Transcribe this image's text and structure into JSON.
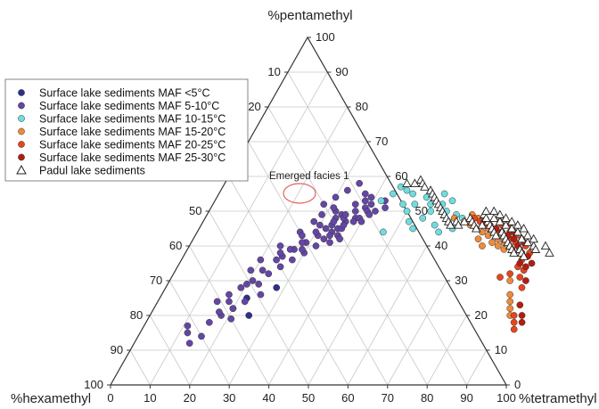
{
  "chart_data": {
    "type": "scatter",
    "subtype": "ternary",
    "axes": {
      "top": "%pentamethyl",
      "left": "%hexamethyl",
      "right": "%tetramethyl"
    },
    "bottom_ticks": [
      "0",
      "10",
      "20",
      "30",
      "40",
      "50",
      "60",
      "70",
      "80",
      "90",
      "100"
    ],
    "left_ticks": [
      "10",
      "20",
      "30",
      "40",
      "50",
      "60",
      "70",
      "80",
      "90",
      "100"
    ],
    "right_ticks": [
      "0",
      "10",
      "20",
      "30",
      "40",
      "50",
      "60",
      "70",
      "80",
      "90",
      "100"
    ],
    "grid": true,
    "legend_position": "top-left",
    "annotation": {
      "text": "Emerged facies 1",
      "marker": "ellipse",
      "marker_color": "#e06060"
    },
    "series": [
      {
        "name": "Surface lake sediments MAF <5°C",
        "marker": "circle",
        "color": "#2e2f8f",
        "points": [
          [
            20,
            22
          ],
          [
            22,
            25
          ],
          [
            25,
            20
          ],
          [
            28,
            28
          ]
        ]
      },
      {
        "name": "Surface lake sediments MAF 5-10°C",
        "marker": "circle",
        "color": "#6446a6",
        "points": [
          [
            14,
            12
          ],
          [
            12,
            15
          ],
          [
            16,
            18
          ],
          [
            18,
            20
          ],
          [
            20,
            22
          ],
          [
            22,
            24
          ],
          [
            17,
            26
          ],
          [
            19,
            28
          ],
          [
            21,
            30
          ],
          [
            24,
            32
          ],
          [
            22,
            33
          ],
          [
            26,
            34
          ],
          [
            28,
            36
          ],
          [
            25,
            37
          ],
          [
            30,
            38
          ],
          [
            27,
            39
          ],
          [
            32,
            40
          ],
          [
            29,
            41
          ],
          [
            33,
            42
          ],
          [
            31,
            43
          ],
          [
            34,
            44
          ],
          [
            35,
            45
          ],
          [
            33,
            46
          ],
          [
            36,
            47
          ],
          [
            30,
            46
          ],
          [
            38,
            48
          ],
          [
            34,
            49
          ],
          [
            37,
            50
          ],
          [
            39,
            51
          ],
          [
            32,
            50
          ],
          [
            28,
            47
          ],
          [
            26,
            44
          ],
          [
            23,
            40
          ],
          [
            20,
            36
          ],
          [
            24,
            36
          ],
          [
            27,
            43
          ],
          [
            30,
            44
          ],
          [
            36,
            45
          ],
          [
            35,
            48
          ],
          [
            39,
            48
          ],
          [
            33,
            48
          ],
          [
            29,
            49
          ],
          [
            31,
            51
          ],
          [
            28,
            52
          ],
          [
            30,
            54
          ],
          [
            32,
            56
          ],
          [
            36,
            52
          ],
          [
            40,
            50
          ],
          [
            38,
            53
          ],
          [
            37,
            55
          ],
          [
            34,
            58
          ],
          [
            43,
            53
          ],
          [
            42,
            50
          ],
          [
            44,
            51
          ],
          [
            39,
            54
          ],
          [
            40,
            52
          ],
          [
            32,
            45
          ],
          [
            36,
            43
          ],
          [
            37,
            42
          ],
          [
            35,
            41
          ],
          [
            25,
            26
          ],
          [
            23,
            29
          ],
          [
            18,
            24
          ],
          [
            21,
            19
          ],
          [
            16,
            14
          ],
          [
            15,
            24
          ],
          [
            19,
            33
          ],
          [
            24,
            38
          ],
          [
            29,
            39
          ],
          [
            33,
            47
          ],
          [
            36,
            46
          ],
          [
            35,
            49
          ],
          [
            41,
            49
          ],
          [
            40,
            47
          ],
          [
            38,
            47
          ],
          [
            34,
            43
          ],
          [
            28,
            41
          ],
          [
            26,
            39
          ],
          [
            20,
            29
          ],
          [
            17,
            21
          ],
          [
            11,
            17
          ]
        ]
      },
      {
        "name": "Surface lake sediments MAF 10-15°C",
        "marker": "circle",
        "color": "#6fdde0",
        "points": [
          [
            42,
            53
          ],
          [
            44,
            55
          ],
          [
            45,
            57
          ],
          [
            47,
            56
          ],
          [
            48,
            52
          ],
          [
            49,
            55
          ],
          [
            50,
            50
          ],
          [
            53,
            54
          ],
          [
            55,
            52
          ],
          [
            52,
            47
          ],
          [
            56,
            50
          ],
          [
            58,
            52
          ],
          [
            60,
            50
          ],
          [
            62,
            47
          ],
          [
            59,
            46
          ],
          [
            54,
            45
          ],
          [
            47,
            44
          ],
          [
            51,
            52
          ],
          [
            57,
            55
          ],
          [
            63,
            49
          ],
          [
            60,
            53
          ],
          [
            65,
            48
          ],
          [
            55,
            48
          ],
          [
            61,
            44
          ],
          [
            64,
            45
          ]
        ]
      },
      {
        "name": "Surface lake sediments MAF 15-20°C",
        "marker": "circle",
        "color": "#f08a3a",
        "points": [
          [
            63,
            48
          ],
          [
            66,
            47
          ],
          [
            68,
            46
          ],
          [
            70,
            45
          ],
          [
            72,
            44
          ],
          [
            74,
            43
          ],
          [
            76,
            41
          ],
          [
            78,
            40
          ],
          [
            80,
            39
          ],
          [
            67,
            49
          ],
          [
            69,
            48
          ],
          [
            71,
            47
          ],
          [
            73,
            45
          ],
          [
            75,
            44
          ],
          [
            77,
            42
          ],
          [
            79,
            41
          ],
          [
            81,
            40
          ],
          [
            83,
            38
          ],
          [
            72,
            42
          ],
          [
            74,
            40
          ],
          [
            90,
            22
          ],
          [
            91,
            20
          ],
          [
            89,
            24
          ],
          [
            86,
            30
          ],
          [
            88,
            26
          ]
        ]
      },
      {
        "name": "Surface lake sediments MAF 20-25°C",
        "marker": "circle",
        "color": "#e8451c",
        "points": [
          [
            68,
            48
          ],
          [
            70,
            47
          ],
          [
            72,
            46
          ],
          [
            74,
            45
          ],
          [
            76,
            44
          ],
          [
            78,
            43
          ],
          [
            80,
            42
          ],
          [
            82,
            41
          ],
          [
            84,
            39
          ],
          [
            86,
            36
          ],
          [
            88,
            31
          ],
          [
            90,
            28
          ],
          [
            92,
            20
          ],
          [
            93,
            18
          ],
          [
            94,
            16
          ],
          [
            86,
            34
          ],
          [
            88,
            33
          ],
          [
            83,
            31
          ],
          [
            85,
            32
          ],
          [
            78,
            46
          ],
          [
            76,
            46
          ],
          [
            79,
            44
          ],
          [
            81,
            43
          ],
          [
            83,
            42
          ],
          [
            85,
            40
          ],
          [
            87,
            38
          ],
          [
            75,
            47
          ]
        ]
      },
      {
        "name": "Surface lake sediments MAF 25-30°C",
        "marker": "circle",
        "color": "#b51c10",
        "points": [
          [
            71,
            47
          ],
          [
            73,
            46
          ],
          [
            75,
            45
          ],
          [
            77,
            44
          ],
          [
            79,
            43
          ],
          [
            81,
            42
          ],
          [
            83,
            40
          ],
          [
            85,
            38
          ],
          [
            87,
            37
          ],
          [
            89,
            35
          ],
          [
            92,
            23
          ],
          [
            94,
            20
          ],
          [
            95,
            18
          ],
          [
            90,
            30
          ],
          [
            86,
            35
          ],
          [
            88,
            34
          ],
          [
            82,
            39
          ],
          [
            84,
            41
          ],
          [
            80,
            44
          ]
        ]
      },
      {
        "name": "Padul lake sediments",
        "marker": "triangle",
        "color": "#ffffff",
        "stroke": "#222222",
        "points": [
          [
            46,
            58
          ],
          [
            49,
            59
          ],
          [
            50,
            58
          ],
          [
            51,
            57
          ],
          [
            48,
            58
          ],
          [
            53,
            56
          ],
          [
            54,
            55
          ],
          [
            55,
            54
          ],
          [
            56,
            53
          ],
          [
            57,
            52
          ],
          [
            58,
            51
          ],
          [
            59,
            50
          ],
          [
            60,
            49
          ],
          [
            61,
            48
          ],
          [
            62,
            47
          ],
          [
            63,
            46
          ],
          [
            64,
            47
          ],
          [
            65,
            46
          ],
          [
            66,
            47
          ],
          [
            67,
            48
          ],
          [
            68,
            47
          ],
          [
            69,
            46
          ],
          [
            70,
            45
          ],
          [
            71,
            46
          ],
          [
            72,
            47
          ],
          [
            73,
            46
          ],
          [
            74,
            45
          ],
          [
            75,
            44
          ],
          [
            76,
            43
          ],
          [
            77,
            44
          ],
          [
            78,
            43
          ],
          [
            79,
            42
          ],
          [
            80,
            41
          ],
          [
            81,
            40
          ],
          [
            82,
            39
          ],
          [
            83,
            38
          ],
          [
            84,
            39
          ],
          [
            85,
            38
          ],
          [
            86,
            37
          ],
          [
            70,
            49
          ],
          [
            71,
            48
          ],
          [
            73,
            48
          ],
          [
            75,
            47
          ],
          [
            77,
            46
          ],
          [
            79,
            45
          ],
          [
            81,
            44
          ],
          [
            83,
            42
          ],
          [
            85,
            41
          ],
          [
            87,
            40
          ],
          [
            88,
            39
          ],
          [
            70,
            50
          ],
          [
            72,
            50
          ],
          [
            74,
            49
          ],
          [
            76,
            48
          ],
          [
            78,
            47
          ],
          [
            80,
            46
          ],
          [
            82,
            45
          ],
          [
            84,
            43
          ],
          [
            86,
            42
          ],
          [
            90,
            40
          ],
          [
            92,
            38
          ]
        ]
      }
    ]
  }
}
